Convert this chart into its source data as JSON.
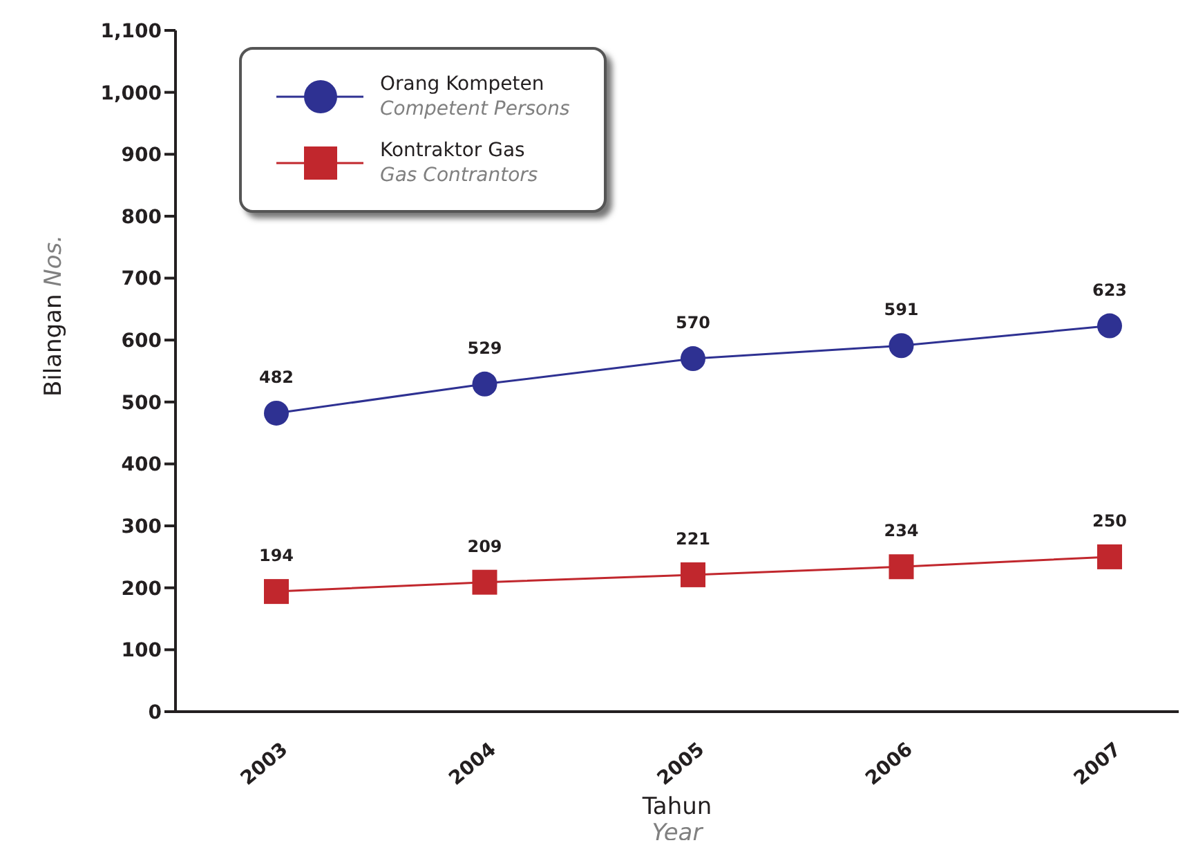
{
  "chart_data": {
    "type": "line",
    "categories": [
      "2003",
      "2004",
      "2005",
      "2006",
      "2007"
    ],
    "series": [
      {
        "name": "Orang Kompeten\nCompetent Persons",
        "color": "#2e3192",
        "marker": "circle",
        "values": [
          482,
          529,
          570,
          591,
          623
        ]
      },
      {
        "name": "Kontraktor Gas\nGas Contrantors",
        "color": "#c1272d",
        "marker": "square",
        "values": [
          194,
          209,
          221,
          234,
          250
        ]
      }
    ],
    "xlabel": "Tahun\nYear",
    "ylabel": "Bilangan\nNos.",
    "ylim": [
      0,
      1100
    ],
    "yticks": [
      0,
      100,
      200,
      300,
      400,
      500,
      600,
      700,
      800,
      900,
      {
        "value": 1000,
        "label": "1,000"
      },
      {
        "value": 1100,
        "label": "1,100"
      }
    ],
    "data_labels": true,
    "legend": "top left"
  }
}
